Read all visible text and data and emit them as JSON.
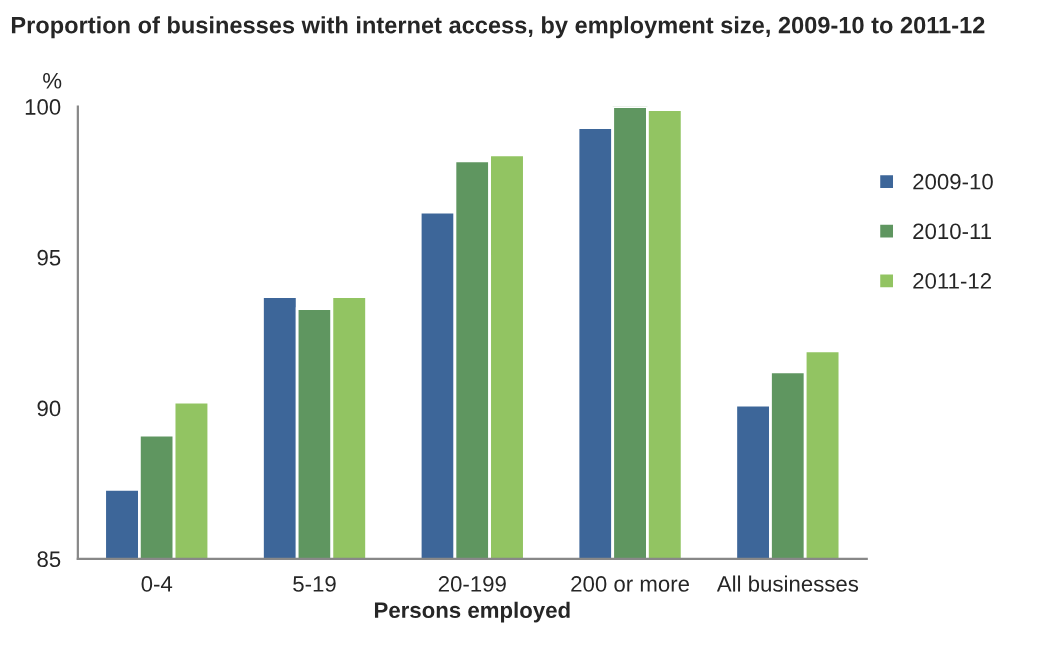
{
  "chart_data": {
    "type": "bar",
    "title": "Proportion of businesses with internet access, by employment size, 2009-10 to 2011-12",
    "xlabel": "Persons employed",
    "ylabel": "%",
    "categories": [
      "0-4",
      "5-19",
      "20-199",
      "200 or more",
      "All businesses"
    ],
    "series": [
      {
        "name": "2009-10",
        "color": "#3d6699",
        "values": [
          87.3,
          93.7,
          96.5,
          99.3,
          90.1
        ]
      },
      {
        "name": "2010-11",
        "color": "#5f9660",
        "values": [
          89.1,
          93.3,
          98.2,
          100.0,
          91.2
        ]
      },
      {
        "name": "2011-12",
        "color": "#92c462",
        "values": [
          90.2,
          93.7,
          98.4,
          99.9,
          91.9
        ]
      }
    ],
    "ylim": [
      85,
      100
    ],
    "yticks": [
      85,
      90,
      95,
      100
    ],
    "grid": false,
    "legend": "right"
  }
}
